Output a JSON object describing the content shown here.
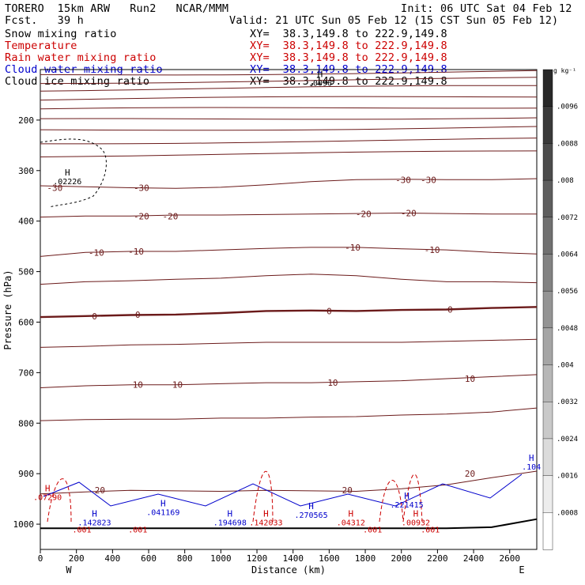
{
  "header": {
    "title_left": "TORERO  15km ARW   Run2   NCAR/MMM",
    "forecast": "Fcst.   39 h",
    "init": "Init: 06 UTC Sat 04 Feb 12",
    "valid": "Valid: 21 UTC Sun 05 Feb 12 (15 CST Sun 05 Feb 12)"
  },
  "fields": [
    {
      "name": "Snow mixing ratio",
      "xy": "XY=  38.3,149.8 to 222.9,149.8",
      "color": "#000000"
    },
    {
      "name": "Temperature",
      "xy": "XY=  38.3,149.8 to 222.9,149.8",
      "color": "#cc0000"
    },
    {
      "name": "Rain water mixing ratio",
      "xy": "XY=  38.3,149.8 to 222.9,149.8",
      "color": "#cc0000"
    },
    {
      "name": "Cloud water mixing ratio",
      "xy": "XY=  38.3,149.8 to 222.9,149.8",
      "color": "#0000cc"
    },
    {
      "name": "Cloud ice mixing ratio",
      "xy": "XY=  38.3,149.8 to 222.9,149.8",
      "color": "#000000"
    }
  ],
  "chart_data": {
    "type": "contour-cross-section",
    "xlabel": "Distance (km)",
    "ylabel": "Pressure (hPa)",
    "xlim": [
      0,
      2750
    ],
    "ylim": [
      1050,
      100
    ],
    "x_ticks": [
      0,
      200,
      400,
      600,
      800,
      1000,
      1200,
      1400,
      1600,
      1800,
      2000,
      2200,
      2400,
      2600
    ],
    "y_ticks": [
      200,
      300,
      400,
      500,
      600,
      700,
      800,
      900,
      1000
    ],
    "x_end_labels": {
      "left": "W",
      "right": "E"
    },
    "colorbar": {
      "unit": "g kg⁻¹",
      "labels": [
        ".0096",
        ".0088",
        ".008",
        ".0072",
        ".0064",
        ".0056",
        ".0048",
        ".004",
        ".0032",
        ".0024",
        ".0016",
        ".0008"
      ]
    },
    "temperature_contour_labels": [
      {
        "value": "-30",
        "x": 80,
        "p": 334
      },
      {
        "value": "-30",
        "x": 560,
        "p": 334
      },
      {
        "value": "-30",
        "x": 2010,
        "p": 318
      },
      {
        "value": "-30",
        "x": 2150,
        "p": 318
      },
      {
        "value": "-20",
        "x": 560,
        "p": 390
      },
      {
        "value": "-20",
        "x": 720,
        "p": 390
      },
      {
        "value": "-20",
        "x": 1790,
        "p": 386
      },
      {
        "value": "-20",
        "x": 2040,
        "p": 384
      },
      {
        "value": "-10",
        "x": 310,
        "p": 462
      },
      {
        "value": "-10",
        "x": 530,
        "p": 460
      },
      {
        "value": "-10",
        "x": 1730,
        "p": 452
      },
      {
        "value": "-10",
        "x": 2170,
        "p": 457
      },
      {
        "value": "0",
        "x": 300,
        "p": 588
      },
      {
        "value": "0",
        "x": 540,
        "p": 585
      },
      {
        "value": "0",
        "x": 1600,
        "p": 578
      },
      {
        "value": "0",
        "x": 2270,
        "p": 575
      },
      {
        "value": "10",
        "x": 540,
        "p": 724
      },
      {
        "value": "10",
        "x": 760,
        "p": 724
      },
      {
        "value": "10",
        "x": 1620,
        "p": 720
      },
      {
        "value": "10",
        "x": 2380,
        "p": 712
      },
      {
        "value": "20",
        "x": 330,
        "p": 933
      },
      {
        "value": "20",
        "x": 1700,
        "p": 933
      },
      {
        "value": "20",
        "x": 2380,
        "p": 900
      }
    ],
    "highs": [
      {
        "label": "H",
        "value": ".02226",
        "x": 150,
        "p": 310,
        "color": "#000000"
      },
      {
        "label": "H",
        "value": ".07290",
        "x": 40,
        "p": 935,
        "color": "#cc0000"
      },
      {
        "label": "H",
        "value": ".142823",
        "x": 300,
        "p": 985,
        "color": "#0000cc"
      },
      {
        "label": "H",
        "value": ".041169",
        "x": 680,
        "p": 965,
        "color": "#0000cc"
      },
      {
        "label": "H",
        "value": ".194698",
        "x": 1050,
        "p": 985,
        "color": "#0000cc"
      },
      {
        "label": "H",
        "value": ".142033",
        "x": 1250,
        "p": 985,
        "color": "#cc0000"
      },
      {
        "label": "H",
        "value": ".270565",
        "x": 1500,
        "p": 970,
        "color": "#0000cc"
      },
      {
        "label": "H",
        "value": ".04312",
        "x": 1720,
        "p": 985,
        "color": "#cc0000"
      },
      {
        "label": "H",
        "value": ".221415",
        "x": 2030,
        "p": 950,
        "color": "#0000cc"
      },
      {
        "label": "H",
        "value": ".00932",
        "x": 2080,
        "p": 985,
        "color": "#cc0000"
      },
      {
        "label": "H",
        "value": ".104",
        "x": 2720,
        "p": 875,
        "color": "#0000cc"
      },
      {
        "label": "H",
        "value": ".0096",
        "x": 1550,
        "p": 115,
        "color": "#000000"
      }
    ],
    "lows": [
      {
        "value": ".001",
        "x": 230,
        "p": 1010
      },
      {
        "value": ".001",
        "x": 540,
        "p": 1010
      },
      {
        "value": ".001",
        "x": 1840,
        "p": 1010
      },
      {
        "value": ".001",
        "x": 2160,
        "p": 1010
      }
    ]
  }
}
